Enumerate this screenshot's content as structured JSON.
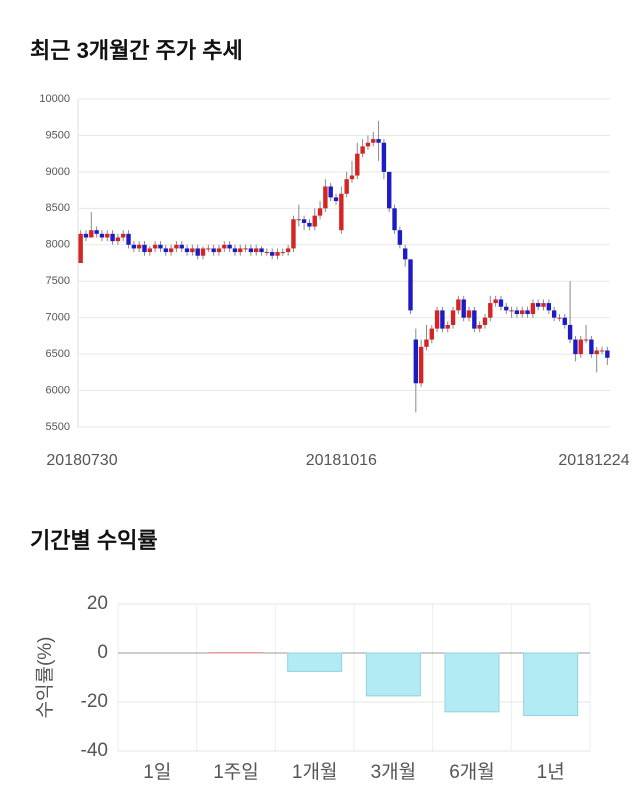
{
  "chart_data": [
    {
      "type": "candlestick",
      "title": "최근 3개월간 주가 추세",
      "up_color": "#d42424",
      "down_color": "#1c1cc4",
      "grid": true,
      "ylim": [
        5500,
        10000
      ],
      "yticks": [
        5500,
        6000,
        6500,
        7000,
        7500,
        8000,
        8500,
        9000,
        9500,
        10000
      ],
      "categories": [
        "20180730",
        null,
        null,
        null,
        null,
        null,
        null,
        null,
        null,
        null,
        null,
        null,
        null,
        null,
        null,
        null,
        null,
        null,
        null,
        null,
        null,
        null,
        null,
        null,
        null,
        null,
        null,
        null,
        null,
        null,
        null,
        null,
        null,
        null,
        null,
        null,
        null,
        null,
        null,
        null,
        null,
        null,
        null,
        null,
        null,
        null,
        null,
        null,
        null,
        "20181016",
        null,
        null,
        null,
        null,
        null,
        null,
        null,
        null,
        null,
        null,
        null,
        null,
        null,
        null,
        null,
        null,
        null,
        null,
        null,
        null,
        null,
        null,
        null,
        null,
        null,
        null,
        null,
        null,
        null,
        null,
        null,
        null,
        null,
        null,
        null,
        null,
        null,
        null,
        null,
        null,
        null,
        null,
        null,
        null,
        null,
        null,
        null,
        null,
        null,
        "20181224"
      ],
      "open": [
        7750,
        8150,
        8100,
        8200,
        8150,
        8100,
        8150,
        8050,
        8100,
        8150,
        8000,
        7950,
        8000,
        7900,
        7950,
        8000,
        7950,
        7900,
        7950,
        8000,
        7950,
        7900,
        7950,
        7850,
        7950,
        7950,
        7900,
        7950,
        8000,
        7950,
        7900,
        7950,
        7950,
        7900,
        7950,
        7900,
        7900,
        7850,
        7900,
        7900,
        7950,
        8350,
        8350,
        8300,
        8250,
        8400,
        8500,
        8800,
        8650,
        8200,
        8700,
        8900,
        8950,
        9250,
        9350,
        9400,
        9450,
        9400,
        9000,
        8500,
        8200,
        7950,
        7800,
        6700,
        6100,
        6600,
        6700,
        6850,
        7100,
        6850,
        6900,
        7100,
        7250,
        7000,
        7100,
        6850,
        6900,
        7000,
        7200,
        7250,
        7150,
        7100,
        7100,
        7050,
        7100,
        7050,
        7200,
        7150,
        7200,
        7100,
        7000,
        7000,
        6900,
        6700,
        6500,
        6700,
        6700,
        6500,
        6550,
        6550
      ],
      "high": [
        8200,
        8200,
        8450,
        8250,
        8200,
        8200,
        8200,
        8150,
        8200,
        8200,
        8050,
        8050,
        8050,
        7980,
        8050,
        8050,
        8000,
        8000,
        8050,
        8050,
        8000,
        8000,
        8000,
        7980,
        8000,
        8000,
        8000,
        8050,
        8050,
        8000,
        8000,
        8000,
        8000,
        8000,
        7980,
        7950,
        7950,
        7950,
        7950,
        8000,
        8400,
        8550,
        8400,
        8350,
        8500,
        8600,
        8900,
        8850,
        8700,
        8800,
        9000,
        9150,
        9400,
        9450,
        9500,
        9550,
        9700,
        9450,
        9000,
        8550,
        8250,
        8000,
        7800,
        6850,
        6700,
        6900,
        6900,
        7150,
        7150,
        6950,
        7150,
        7300,
        7300,
        7150,
        7150,
        6950,
        7050,
        7300,
        7300,
        7300,
        7200,
        7150,
        7150,
        7150,
        7150,
        7250,
        7250,
        7250,
        7250,
        7150,
        7050,
        7050,
        7500,
        6750,
        6750,
        6900,
        6750,
        6600,
        6600,
        6600
      ],
      "low": [
        7750,
        8050,
        8100,
        8100,
        8050,
        8050,
        8000,
        8000,
        8050,
        7950,
        7900,
        7900,
        7850,
        7850,
        7900,
        7900,
        7850,
        7850,
        7900,
        7900,
        7850,
        7850,
        7800,
        7800,
        7900,
        7850,
        7850,
        7900,
        7900,
        7850,
        7850,
        7900,
        7850,
        7850,
        7850,
        7850,
        7800,
        7800,
        7850,
        7850,
        7900,
        8250,
        8200,
        8200,
        8200,
        8350,
        8450,
        8600,
        8550,
        8150,
        8650,
        8850,
        8900,
        9200,
        9300,
        9350,
        9150,
        8900,
        8450,
        8150,
        7950,
        7700,
        7050,
        5700,
        6050,
        6550,
        6650,
        6800,
        6800,
        6800,
        6850,
        7050,
        6950,
        6950,
        6800,
        6800,
        6850,
        6950,
        7150,
        7100,
        7050,
        7000,
        7000,
        7000,
        7000,
        7000,
        7100,
        7100,
        7050,
        6950,
        6950,
        6850,
        6650,
        6400,
        6450,
        6650,
        6450,
        6250,
        6500,
        6350
      ],
      "close": [
        8150,
        8100,
        8200,
        8150,
        8100,
        8150,
        8050,
        8100,
        8150,
        8000,
        7950,
        8000,
        7900,
        7950,
        8000,
        7950,
        7900,
        7950,
        8000,
        7950,
        7900,
        7950,
        7850,
        7950,
        7950,
        7900,
        7950,
        8000,
        7950,
        7900,
        7950,
        7950,
        7900,
        7950,
        7900,
        7900,
        7850,
        7900,
        7900,
        7950,
        8350,
        8350,
        8300,
        8250,
        8400,
        8500,
        8800,
        8650,
        8600,
        8700,
        8900,
        8950,
        9250,
        9350,
        9400,
        9450,
        9400,
        9000,
        8500,
        8200,
        8000,
        7800,
        7100,
        6100,
        6600,
        6700,
        6850,
        7100,
        6850,
        6900,
        7100,
        7250,
        7000,
        7100,
        6850,
        6900,
        7000,
        7200,
        7250,
        7150,
        7100,
        7100,
        7050,
        7100,
        7050,
        7200,
        7150,
        7200,
        7100,
        7000,
        7000,
        6900,
        6700,
        6500,
        6700,
        6700,
        6500,
        6550,
        6550,
        6450
      ]
    },
    {
      "type": "bar",
      "title": "기간별 수익률",
      "y_label": "수익률(%)",
      "categories": [
        "1일",
        "1주일",
        "1개월",
        "3개월",
        "6개월",
        "1년"
      ],
      "values": [
        0,
        0.2,
        -7.5,
        -17.5,
        -24,
        -25.5
      ],
      "positive_color": "#f5b5b5",
      "negative_color": "#b3ebf5",
      "grid": true,
      "ylim": [
        -40,
        20
      ],
      "yticks": [
        -40,
        -20,
        0,
        20
      ]
    }
  ]
}
